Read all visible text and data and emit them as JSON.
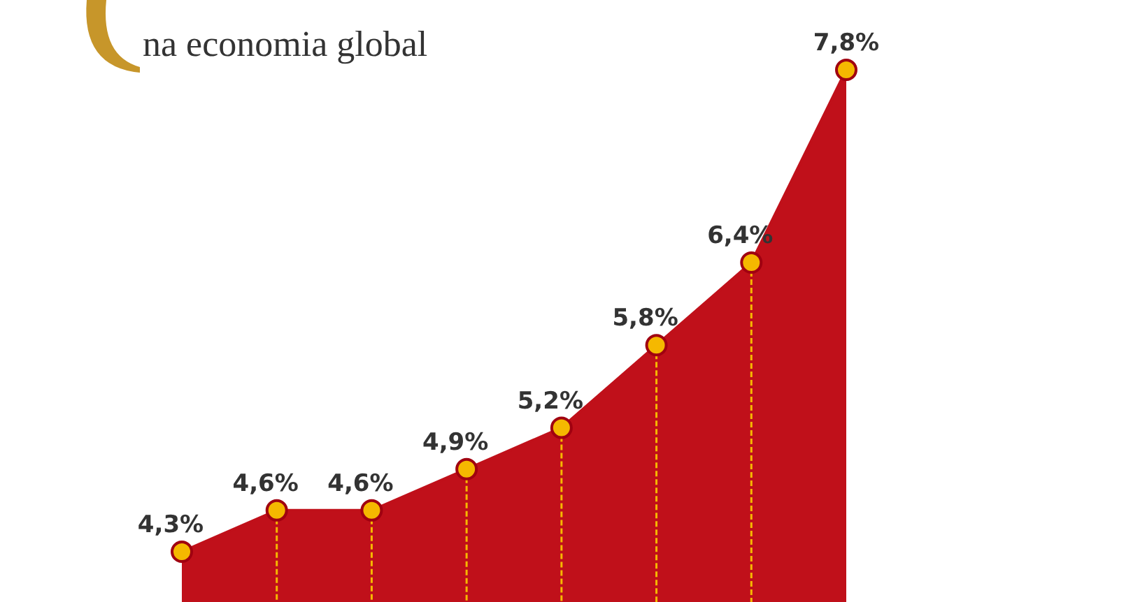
{
  "chart_data": {
    "type": "area",
    "title": "na economia global",
    "categories": [
      null,
      null,
      null,
      null,
      null,
      null,
      null,
      null
    ],
    "series": [
      {
        "color": "#c0101a",
        "values": [
          4.3,
          4.6,
          4.6,
          4.9,
          5.2,
          5.8,
          6.4,
          7.8
        ],
        "value_labels": [
          "4,3%",
          "4,6%",
          "4,6%",
          "4,9%",
          "5,2%",
          "5,8%",
          "6,4%",
          "7,8%"
        ]
      }
    ],
    "marker": "circle"
  }
}
